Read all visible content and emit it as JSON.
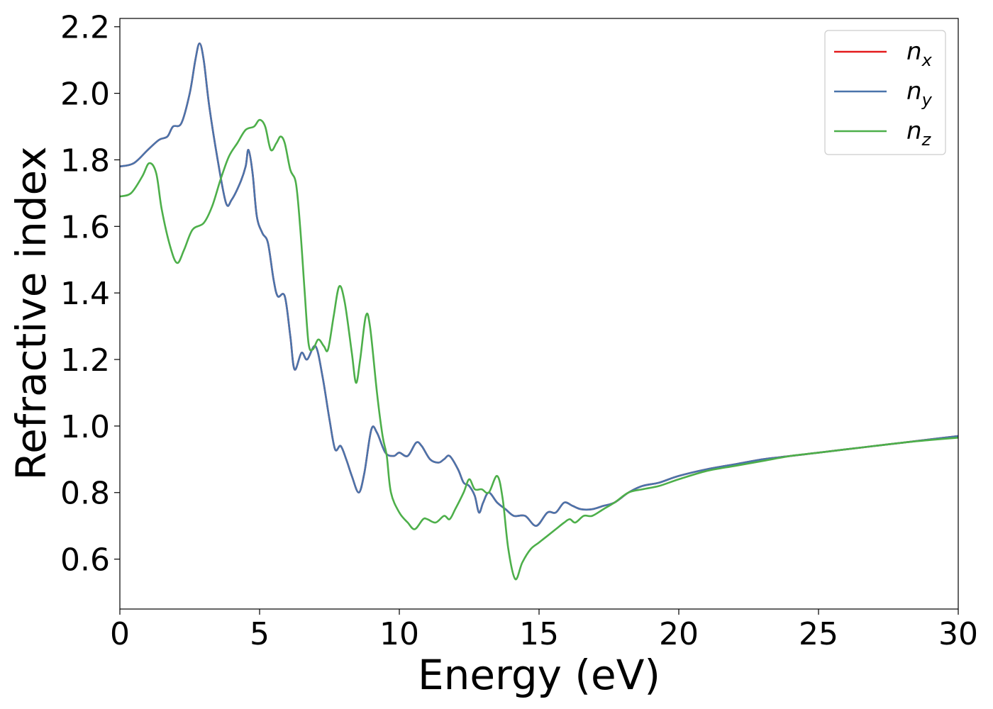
{
  "chart_data": {
    "type": "line",
    "title": "",
    "xlabel": "Energy (eV)",
    "ylabel": "Refractive index",
    "xlim": [
      0,
      30
    ],
    "ylim": [
      0.45,
      2.225
    ],
    "xticks": [
      0,
      5,
      10,
      15,
      20,
      25,
      30
    ],
    "xtick_labels": [
      "0",
      "5",
      "10",
      "15",
      "20",
      "25",
      "30"
    ],
    "yticks": [
      0.6,
      0.8,
      1.0,
      1.2,
      1.4,
      1.6,
      1.8,
      2.0,
      2.2
    ],
    "ytick_labels": [
      "0.6",
      "0.8",
      "1.0",
      "1.2",
      "1.4",
      "1.6",
      "1.8",
      "2.0",
      "2.2"
    ],
    "grid": false,
    "legend_position": "top-right",
    "series": [
      {
        "name": "n_x",
        "label_base": "n",
        "label_sub": "x",
        "color": "#e41a1c",
        "points": [
          [
            0,
            1.78
          ],
          [
            0.5,
            1.79
          ],
          [
            1.0,
            1.83
          ],
          [
            1.4,
            1.86
          ],
          [
            1.7,
            1.87
          ],
          [
            1.9,
            1.9
          ],
          [
            2.2,
            1.91
          ],
          [
            2.5,
            2.0
          ],
          [
            2.7,
            2.1
          ],
          [
            2.85,
            2.15
          ],
          [
            3.0,
            2.1
          ],
          [
            3.2,
            1.96
          ],
          [
            3.5,
            1.8
          ],
          [
            3.8,
            1.67
          ],
          [
            4.0,
            1.68
          ],
          [
            4.3,
            1.73
          ],
          [
            4.5,
            1.78
          ],
          [
            4.6,
            1.83
          ],
          [
            4.75,
            1.76
          ],
          [
            4.9,
            1.63
          ],
          [
            5.1,
            1.58
          ],
          [
            5.3,
            1.55
          ],
          [
            5.5,
            1.44
          ],
          [
            5.65,
            1.39
          ],
          [
            5.9,
            1.39
          ],
          [
            6.1,
            1.27
          ],
          [
            6.25,
            1.17
          ],
          [
            6.5,
            1.22
          ],
          [
            6.7,
            1.2
          ],
          [
            7.0,
            1.24
          ],
          [
            7.25,
            1.15
          ],
          [
            7.5,
            1.02
          ],
          [
            7.7,
            0.93
          ],
          [
            7.9,
            0.94
          ],
          [
            8.1,
            0.9
          ],
          [
            8.3,
            0.85
          ],
          [
            8.55,
            0.8
          ],
          [
            8.75,
            0.86
          ],
          [
            9.0,
            0.99
          ],
          [
            9.2,
            0.98
          ],
          [
            9.5,
            0.92
          ],
          [
            9.8,
            0.91
          ],
          [
            10.0,
            0.92
          ],
          [
            10.3,
            0.91
          ],
          [
            10.6,
            0.95
          ],
          [
            10.8,
            0.94
          ],
          [
            11.1,
            0.9
          ],
          [
            11.4,
            0.89
          ],
          [
            11.6,
            0.9
          ],
          [
            11.8,
            0.91
          ],
          [
            12.1,
            0.87
          ],
          [
            12.3,
            0.83
          ],
          [
            12.5,
            0.82
          ],
          [
            12.7,
            0.79
          ],
          [
            12.85,
            0.74
          ],
          [
            13.0,
            0.77
          ],
          [
            13.2,
            0.8
          ],
          [
            13.5,
            0.77
          ],
          [
            13.8,
            0.75
          ],
          [
            14.1,
            0.73
          ],
          [
            14.5,
            0.73
          ],
          [
            14.9,
            0.7
          ],
          [
            15.3,
            0.74
          ],
          [
            15.6,
            0.74
          ],
          [
            15.9,
            0.77
          ],
          [
            16.2,
            0.76
          ],
          [
            16.5,
            0.75
          ],
          [
            16.9,
            0.75
          ],
          [
            17.3,
            0.76
          ],
          [
            17.7,
            0.77
          ],
          [
            18.2,
            0.8
          ],
          [
            18.7,
            0.82
          ],
          [
            19.3,
            0.83
          ],
          [
            20.0,
            0.85
          ],
          [
            21.0,
            0.87
          ],
          [
            22.0,
            0.885
          ],
          [
            23.0,
            0.9
          ],
          [
            24.0,
            0.91
          ],
          [
            25.0,
            0.92
          ],
          [
            26.0,
            0.93
          ],
          [
            27.0,
            0.94
          ],
          [
            28.0,
            0.95
          ],
          [
            29.0,
            0.96
          ],
          [
            30.0,
            0.97
          ]
        ]
      },
      {
        "name": "n_y",
        "label_base": "n",
        "label_sub": "y",
        "color": "#4a74ab",
        "points": [
          [
            0,
            1.78
          ],
          [
            0.5,
            1.79
          ],
          [
            1.0,
            1.83
          ],
          [
            1.4,
            1.86
          ],
          [
            1.7,
            1.87
          ],
          [
            1.9,
            1.9
          ],
          [
            2.2,
            1.91
          ],
          [
            2.5,
            2.0
          ],
          [
            2.7,
            2.1
          ],
          [
            2.85,
            2.15
          ],
          [
            3.0,
            2.1
          ],
          [
            3.2,
            1.96
          ],
          [
            3.5,
            1.8
          ],
          [
            3.8,
            1.67
          ],
          [
            4.0,
            1.68
          ],
          [
            4.3,
            1.73
          ],
          [
            4.5,
            1.78
          ],
          [
            4.6,
            1.83
          ],
          [
            4.75,
            1.76
          ],
          [
            4.9,
            1.63
          ],
          [
            5.1,
            1.58
          ],
          [
            5.3,
            1.55
          ],
          [
            5.5,
            1.44
          ],
          [
            5.65,
            1.39
          ],
          [
            5.9,
            1.39
          ],
          [
            6.1,
            1.27
          ],
          [
            6.25,
            1.17
          ],
          [
            6.5,
            1.22
          ],
          [
            6.7,
            1.2
          ],
          [
            7.0,
            1.24
          ],
          [
            7.25,
            1.15
          ],
          [
            7.5,
            1.02
          ],
          [
            7.7,
            0.93
          ],
          [
            7.9,
            0.94
          ],
          [
            8.1,
            0.9
          ],
          [
            8.3,
            0.85
          ],
          [
            8.55,
            0.8
          ],
          [
            8.75,
            0.86
          ],
          [
            9.0,
            0.99
          ],
          [
            9.2,
            0.98
          ],
          [
            9.5,
            0.92
          ],
          [
            9.8,
            0.91
          ],
          [
            10.0,
            0.92
          ],
          [
            10.3,
            0.91
          ],
          [
            10.6,
            0.95
          ],
          [
            10.8,
            0.94
          ],
          [
            11.1,
            0.9
          ],
          [
            11.4,
            0.89
          ],
          [
            11.6,
            0.9
          ],
          [
            11.8,
            0.91
          ],
          [
            12.1,
            0.87
          ],
          [
            12.3,
            0.83
          ],
          [
            12.5,
            0.82
          ],
          [
            12.7,
            0.79
          ],
          [
            12.85,
            0.74
          ],
          [
            13.0,
            0.77
          ],
          [
            13.2,
            0.8
          ],
          [
            13.5,
            0.77
          ],
          [
            13.8,
            0.75
          ],
          [
            14.1,
            0.73
          ],
          [
            14.5,
            0.73
          ],
          [
            14.9,
            0.7
          ],
          [
            15.3,
            0.74
          ],
          [
            15.6,
            0.74
          ],
          [
            15.9,
            0.77
          ],
          [
            16.2,
            0.76
          ],
          [
            16.5,
            0.75
          ],
          [
            16.9,
            0.75
          ],
          [
            17.3,
            0.76
          ],
          [
            17.7,
            0.77
          ],
          [
            18.2,
            0.8
          ],
          [
            18.7,
            0.82
          ],
          [
            19.3,
            0.83
          ],
          [
            20.0,
            0.85
          ],
          [
            21.0,
            0.87
          ],
          [
            22.0,
            0.885
          ],
          [
            23.0,
            0.9
          ],
          [
            24.0,
            0.91
          ],
          [
            25.0,
            0.92
          ],
          [
            26.0,
            0.93
          ],
          [
            27.0,
            0.94
          ],
          [
            28.0,
            0.95
          ],
          [
            29.0,
            0.96
          ],
          [
            30.0,
            0.97
          ]
        ]
      },
      {
        "name": "n_z",
        "label_base": "n",
        "label_sub": "z",
        "color": "#4daf4a",
        "points": [
          [
            0,
            1.69
          ],
          [
            0.4,
            1.7
          ],
          [
            0.8,
            1.75
          ],
          [
            1.05,
            1.79
          ],
          [
            1.3,
            1.76
          ],
          [
            1.5,
            1.65
          ],
          [
            1.8,
            1.54
          ],
          [
            2.05,
            1.49
          ],
          [
            2.3,
            1.53
          ],
          [
            2.6,
            1.59
          ],
          [
            3.0,
            1.61
          ],
          [
            3.3,
            1.66
          ],
          [
            3.6,
            1.74
          ],
          [
            3.9,
            1.81
          ],
          [
            4.2,
            1.85
          ],
          [
            4.5,
            1.89
          ],
          [
            4.8,
            1.9
          ],
          [
            5.0,
            1.92
          ],
          [
            5.2,
            1.9
          ],
          [
            5.4,
            1.83
          ],
          [
            5.6,
            1.85
          ],
          [
            5.75,
            1.87
          ],
          [
            5.9,
            1.85
          ],
          [
            6.1,
            1.77
          ],
          [
            6.3,
            1.73
          ],
          [
            6.45,
            1.6
          ],
          [
            6.6,
            1.42
          ],
          [
            6.75,
            1.25
          ],
          [
            6.9,
            1.23
          ],
          [
            7.1,
            1.26
          ],
          [
            7.3,
            1.24
          ],
          [
            7.45,
            1.23
          ],
          [
            7.65,
            1.33
          ],
          [
            7.85,
            1.42
          ],
          [
            8.05,
            1.37
          ],
          [
            8.3,
            1.22
          ],
          [
            8.45,
            1.13
          ],
          [
            8.6,
            1.2
          ],
          [
            8.8,
            1.33
          ],
          [
            8.95,
            1.3
          ],
          [
            9.2,
            1.1
          ],
          [
            9.4,
            0.97
          ],
          [
            9.55,
            0.91
          ],
          [
            9.7,
            0.8
          ],
          [
            10.0,
            0.74
          ],
          [
            10.3,
            0.71
          ],
          [
            10.55,
            0.69
          ],
          [
            10.85,
            0.72
          ],
          [
            11.0,
            0.72
          ],
          [
            11.3,
            0.71
          ],
          [
            11.6,
            0.73
          ],
          [
            11.8,
            0.72
          ],
          [
            12.0,
            0.75
          ],
          [
            12.3,
            0.8
          ],
          [
            12.5,
            0.84
          ],
          [
            12.7,
            0.81
          ],
          [
            12.95,
            0.81
          ],
          [
            13.2,
            0.8
          ],
          [
            13.5,
            0.85
          ],
          [
            13.7,
            0.78
          ],
          [
            13.9,
            0.63
          ],
          [
            14.15,
            0.54
          ],
          [
            14.4,
            0.59
          ],
          [
            14.7,
            0.63
          ],
          [
            15.0,
            0.65
          ],
          [
            15.3,
            0.67
          ],
          [
            15.6,
            0.69
          ],
          [
            15.9,
            0.71
          ],
          [
            16.1,
            0.72
          ],
          [
            16.3,
            0.71
          ],
          [
            16.6,
            0.73
          ],
          [
            16.9,
            0.73
          ],
          [
            17.3,
            0.75
          ],
          [
            17.7,
            0.77
          ],
          [
            18.2,
            0.8
          ],
          [
            18.7,
            0.81
          ],
          [
            19.3,
            0.82
          ],
          [
            20.0,
            0.84
          ],
          [
            21.0,
            0.865
          ],
          [
            22.0,
            0.88
          ],
          [
            23.0,
            0.895
          ],
          [
            24.0,
            0.91
          ],
          [
            25.0,
            0.92
          ],
          [
            26.0,
            0.93
          ],
          [
            27.0,
            0.94
          ],
          [
            28.0,
            0.95
          ],
          [
            29.0,
            0.958
          ],
          [
            30.0,
            0.965
          ]
        ]
      }
    ]
  }
}
